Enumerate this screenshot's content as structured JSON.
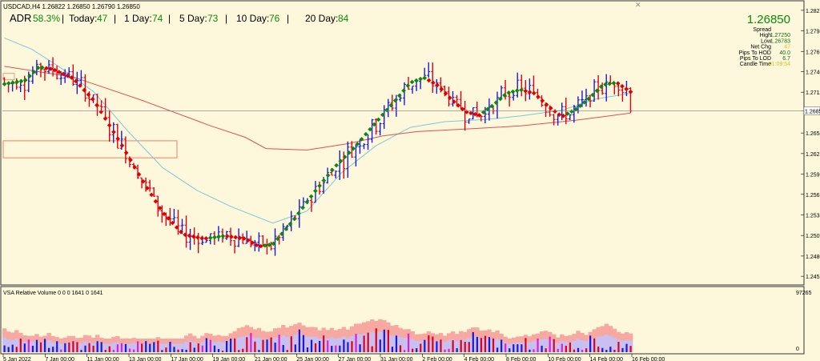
{
  "symbol_header": "USDCAD,H4  1.26822 1.26850 1.26790 1.26850",
  "adr_bar": {
    "adr_label": "ADR",
    "adr_value": "58.3%",
    "today_label": "Today:",
    "today_value": "47",
    "day1_label": "1 Day:",
    "day1_value": "74",
    "day5_label": "5 Day:",
    "day5_value": "73",
    "day10_label": "10 Day:",
    "day10_value": "76",
    "day20_label": "20 Day:",
    "day20_value": "84"
  },
  "info_panel": {
    "price": "1.26850",
    "rows": [
      {
        "label": "Spread",
        "value": ""
      },
      {
        "label": "High",
        "value": "1.27250"
      },
      {
        "label": "Low",
        "value": "1.26783"
      },
      {
        "label": "Net Chg",
        "value": "47"
      },
      {
        "label": "Pips To HOD",
        "value": "40.0"
      },
      {
        "label": "Pips To LOD",
        "value": "6.7"
      },
      {
        "label": "Candle Time",
        "value": "01:09:54"
      }
    ]
  },
  "volume_panel": {
    "title": "VSA Relative Volume 0 0 0 1641 0 1641",
    "y_top": "97265",
    "y_bottom": "0"
  },
  "colors": {
    "background": "#fdf8dc",
    "bull_bar": "#1a1ad8",
    "bear_bar": "#e0001a",
    "ma_up": "#0a8a0a",
    "ma_down": "#e00000",
    "sma_cyan": "#7cc8d8",
    "sma_red": "#e05050",
    "price_line": "#7f7f7f"
  },
  "chart_data": {
    "type": "candlestick",
    "symbol": "USDCAD",
    "timeframe": "H4",
    "y_ticks": [
      "1.28270",
      "1.27980",
      "1.27690",
      "1.27405",
      "1.27115",
      "1.26850",
      "1.26540",
      "1.26250",
      "1.25960",
      "1.25675",
      "1.25385",
      "1.25095",
      "1.24805",
      "1.24520"
    ],
    "ylim": [
      1.2442,
      1.2837
    ],
    "x_ticks": [
      "5 Jan 2022",
      "7 Jan 00:00",
      "11 Jan 00:00",
      "13 Jan 00:00",
      "17 Jan 00:00",
      "19 Jan 00:00",
      "21 Jan 00:00",
      "25 Jan 00:00",
      "27 Jan 00:00",
      "31 Jan 00:00",
      "2 Feb 00:00",
      "4 Feb 00:00",
      "8 Feb 00:00",
      "10 Feb 00:00",
      "14 Feb 00:00",
      "16 Feb 00:00"
    ],
    "candle_count": 156,
    "current_price": 1.2685,
    "series": [
      {
        "name": "ma_dotted",
        "points": [
          [
            0,
            1.2723
          ],
          [
            6,
            1.2728
          ],
          [
            10,
            1.2747
          ],
          [
            14,
            1.2744
          ],
          [
            20,
            1.2731
          ],
          [
            26,
            1.27
          ],
          [
            34,
            1.2638
          ],
          [
            40,
            1.2588
          ],
          [
            46,
            1.2542
          ],
          [
            52,
            1.2511
          ],
          [
            58,
            1.2505
          ],
          [
            64,
            1.2509
          ],
          [
            70,
            1.2505
          ],
          [
            74,
            1.2494
          ],
          [
            78,
            1.2497
          ],
          [
            84,
            1.2531
          ],
          [
            90,
            1.257
          ],
          [
            96,
            1.2606
          ],
          [
            102,
            1.2635
          ],
          [
            108,
            1.2669
          ],
          [
            114,
            1.2702
          ],
          [
            118,
            1.2725
          ],
          [
            122,
            1.2732
          ],
          [
            126,
            1.2721
          ],
          [
            130,
            1.2701
          ],
          [
            134,
            1.2684
          ],
          [
            138,
            1.2679
          ],
          [
            142,
            1.2693
          ],
          [
            146,
            1.271
          ],
          [
            150,
            1.2715
          ],
          [
            154,
            1.271
          ],
          [
            158,
            1.2692
          ],
          [
            162,
            1.2677
          ],
          [
            166,
            1.2687
          ],
          [
            170,
            1.2703
          ],
          [
            174,
            1.2722
          ],
          [
            178,
            1.2725
          ],
          [
            182,
            1.2712
          ]
        ]
      },
      {
        "name": "sma_cyan",
        "points": [
          [
            0,
            1.2788
          ],
          [
            8,
            1.2772
          ],
          [
            16,
            1.2747
          ],
          [
            26,
            1.2712
          ],
          [
            36,
            1.2656
          ],
          [
            46,
            1.2605
          ],
          [
            56,
            1.2573
          ],
          [
            66,
            1.255
          ],
          [
            78,
            1.2527
          ],
          [
            88,
            1.2544
          ],
          [
            98,
            1.2598
          ],
          [
            108,
            1.2636
          ],
          [
            118,
            1.2662
          ],
          [
            128,
            1.267
          ],
          [
            140,
            1.2673
          ],
          [
            150,
            1.2678
          ],
          [
            162,
            1.2686
          ],
          [
            172,
            1.2702
          ],
          [
            182,
            1.271
          ]
        ]
      },
      {
        "name": "sma_red",
        "points": [
          [
            0,
            1.2748
          ],
          [
            20,
            1.2733
          ],
          [
            40,
            1.27
          ],
          [
            60,
            1.2664
          ],
          [
            70,
            1.2648
          ],
          [
            76,
            1.2632
          ],
          [
            88,
            1.263
          ],
          [
            100,
            1.2639
          ],
          [
            110,
            1.265
          ],
          [
            120,
            1.2656
          ],
          [
            136,
            1.266
          ],
          [
            150,
            1.2664
          ],
          [
            166,
            1.2672
          ],
          [
            182,
            1.2682
          ]
        ]
      }
    ]
  }
}
